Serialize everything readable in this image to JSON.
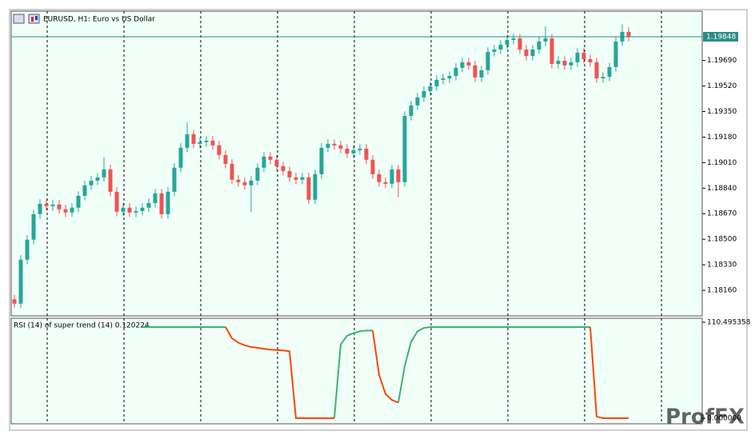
{
  "chart_data": [
    {
      "type": "candlestick",
      "title": "EURUSD, H1:  Euro vs US Dollar",
      "up_color": "#26a69a",
      "down_color": "#ef5350",
      "open": [
        1.181,
        1.18071,
        1.18364,
        1.18497,
        1.18667,
        1.18736,
        1.1872,
        1.18731,
        1.18699,
        1.18678,
        1.1871,
        1.18789,
        1.18859,
        1.1889,
        1.18912,
        1.18965,
        1.18816,
        1.18683,
        1.1871,
        1.18678,
        1.18688,
        1.1871,
        1.18741,
        1.18805,
        1.18667,
        1.18816,
        1.18976,
        1.19109,
        1.19199,
        1.19135,
        1.19146,
        1.19156,
        1.19125,
        1.19061,
        1.19002,
        1.18896,
        1.1888,
        1.18859,
        1.1889,
        1.18976,
        1.1905,
        1.19029,
        1.18986,
        1.18954,
        1.18912,
        1.18896,
        1.18912,
        1.18763,
        1.18933,
        1.19109,
        1.19135,
        1.19125,
        1.19103,
        1.19071,
        1.19093,
        1.19103,
        1.19029,
        1.18933,
        1.1888,
        1.18869,
        1.18965,
        1.1888,
        1.19321,
        1.19391,
        1.19444,
        1.19486,
        1.19518,
        1.19561,
        1.19571,
        1.19587,
        1.19641,
        1.19678,
        1.19657,
        1.19577,
        1.19625,
        1.19747,
        1.19763,
        1.19795,
        1.19827,
        1.19837,
        1.19763,
        1.1972,
        1.19763,
        1.19816,
        1.19837,
        1.19667,
        1.19688,
        1.19657,
        1.19678,
        1.19742,
        1.19699,
        1.19678,
        1.19571,
        1.19582,
        1.19646,
        1.19816,
        1.1988
      ],
      "high": [
        1.1813,
        1.18394,
        1.18527,
        1.18697,
        1.18766,
        1.18766,
        1.18761,
        1.18761,
        1.18729,
        1.1874,
        1.18819,
        1.18889,
        1.1892,
        1.18942,
        1.19045,
        1.18995,
        1.18846,
        1.1874,
        1.1874,
        1.18718,
        1.1874,
        1.18771,
        1.18835,
        1.18835,
        1.18846,
        1.19006,
        1.19139,
        1.19279,
        1.19229,
        1.19176,
        1.19186,
        1.19186,
        1.19155,
        1.19091,
        1.19032,
        1.18926,
        1.1891,
        1.1892,
        1.19006,
        1.1908,
        1.1908,
        1.19059,
        1.19016,
        1.18984,
        1.18942,
        1.18942,
        1.18942,
        1.18963,
        1.19139,
        1.19165,
        1.19165,
        1.19155,
        1.19133,
        1.19123,
        1.19133,
        1.19133,
        1.19059,
        1.18963,
        1.1891,
        1.18995,
        1.18995,
        1.19351,
        1.19421,
        1.19474,
        1.19516,
        1.19548,
        1.19591,
        1.19601,
        1.19617,
        1.19671,
        1.19708,
        1.19708,
        1.19687,
        1.19655,
        1.19777,
        1.19793,
        1.19825,
        1.19857,
        1.19867,
        1.19867,
        1.19793,
        1.19793,
        1.19846,
        1.19917,
        1.19867,
        1.19718,
        1.19718,
        1.19708,
        1.19772,
        1.19772,
        1.19729,
        1.19708,
        1.19612,
        1.19676,
        1.19846,
        1.1993,
        1.1991
      ],
      "low": [
        1.18041,
        1.18041,
        1.18334,
        1.18467,
        1.18637,
        1.1869,
        1.1869,
        1.18669,
        1.18648,
        1.18648,
        1.1868,
        1.18759,
        1.18829,
        1.1886,
        1.18882,
        1.18786,
        1.18653,
        1.18653,
        1.18648,
        1.18648,
        1.18658,
        1.1868,
        1.18711,
        1.18637,
        1.18637,
        1.18786,
        1.18946,
        1.19079,
        1.19105,
        1.19105,
        1.19116,
        1.19095,
        1.19031,
        1.18972,
        1.18866,
        1.1885,
        1.18829,
        1.1868,
        1.1886,
        1.18946,
        1.18999,
        1.18956,
        1.18924,
        1.18882,
        1.18866,
        1.18866,
        1.18733,
        1.18733,
        1.18903,
        1.19079,
        1.19095,
        1.19073,
        1.19041,
        1.19041,
        1.19063,
        1.18999,
        1.18903,
        1.1885,
        1.18839,
        1.18839,
        1.1878,
        1.1885,
        1.19291,
        1.19361,
        1.19414,
        1.19456,
        1.19488,
        1.19531,
        1.19541,
        1.19557,
        1.19611,
        1.19627,
        1.19547,
        1.19547,
        1.19595,
        1.19717,
        1.19733,
        1.19765,
        1.19797,
        1.19733,
        1.1969,
        1.1969,
        1.19733,
        1.19786,
        1.19637,
        1.19637,
        1.19627,
        1.19627,
        1.19648,
        1.19669,
        1.19648,
        1.19541,
        1.19541,
        1.19552,
        1.19616,
        1.19786,
        1.19818
      ],
      "close": [
        1.18071,
        1.18364,
        1.18497,
        1.18667,
        1.18736,
        1.1872,
        1.18731,
        1.18699,
        1.18678,
        1.1871,
        1.18789,
        1.18859,
        1.1889,
        1.18912,
        1.18965,
        1.18816,
        1.18683,
        1.1871,
        1.18678,
        1.18688,
        1.1871,
        1.18741,
        1.18805,
        1.18667,
        1.18816,
        1.18976,
        1.19109,
        1.19199,
        1.19135,
        1.19146,
        1.19156,
        1.19125,
        1.19061,
        1.19002,
        1.18896,
        1.1888,
        1.18859,
        1.1889,
        1.18976,
        1.1905,
        1.19029,
        1.18986,
        1.18954,
        1.18912,
        1.18896,
        1.18912,
        1.18763,
        1.18933,
        1.19109,
        1.19135,
        1.19125,
        1.19103,
        1.19071,
        1.19093,
        1.19103,
        1.19029,
        1.18933,
        1.1888,
        1.18869,
        1.18965,
        1.1888,
        1.19321,
        1.19391,
        1.19444,
        1.19486,
        1.19518,
        1.19561,
        1.19571,
        1.19587,
        1.19641,
        1.19678,
        1.19657,
        1.19577,
        1.19625,
        1.19747,
        1.19763,
        1.19795,
        1.19827,
        1.19837,
        1.19763,
        1.1972,
        1.19763,
        1.19816,
        1.19837,
        1.19667,
        1.19688,
        1.19657,
        1.19678,
        1.19742,
        1.19699,
        1.19678,
        1.19571,
        1.19582,
        1.19646,
        1.19816,
        1.1988,
        1.19848
      ],
      "ylim": [
        1.1799,
        1.20018
      ],
      "yticks": [
        {
          "value": 1.1969,
          "label": "1.19690"
        },
        {
          "value": 1.1952,
          "label": "1.19520"
        },
        {
          "value": 1.1935,
          "label": "1.19350"
        },
        {
          "value": 1.1918,
          "label": "1.19180"
        },
        {
          "value": 1.1901,
          "label": "1.19010"
        },
        {
          "value": 1.1884,
          "label": "1.18840"
        },
        {
          "value": 1.1867,
          "label": "1.18670"
        },
        {
          "value": 1.185,
          "label": "1.18500"
        },
        {
          "value": 1.1833,
          "label": "1.18330"
        },
        {
          "value": 1.1816,
          "label": "1.18160"
        }
      ],
      "last_price": 1.19848,
      "last_price_color": "#2a8c86"
    },
    {
      "type": "line",
      "title": "RSI (14) of super trend (14) 0.120224",
      "series": [
        {
          "color": "#3cb371",
          "values": [
            null,
            null,
            null,
            null,
            null,
            null,
            null,
            null,
            null,
            null,
            null,
            null,
            null,
            null,
            null,
            null,
            null,
            null,
            null,
            null,
            105,
            105,
            105,
            105,
            105,
            105,
            105,
            105,
            105,
            105,
            105,
            105,
            105,
            105,
            null,
            null,
            null,
            null,
            null,
            null,
            null,
            null,
            null,
            null,
            null,
            null,
            null,
            null,
            null,
            null,
            0,
            85,
            95,
            98,
            100,
            101,
            101,
            null,
            null,
            null,
            18,
            60,
            88,
            100,
            104,
            105,
            105,
            105,
            105,
            105,
            105,
            105,
            105,
            105,
            105,
            105,
            105,
            105,
            105,
            105,
            105,
            105,
            105,
            105,
            105,
            105,
            105,
            105,
            105,
            105,
            105,
            null,
            null,
            null,
            null,
            null,
            null
          ]
        },
        {
          "color": "#ff4500",
          "values": [
            null,
            null,
            null,
            null,
            null,
            null,
            null,
            null,
            null,
            null,
            null,
            null,
            null,
            null,
            null,
            null,
            null,
            null,
            null,
            null,
            null,
            null,
            null,
            null,
            null,
            null,
            null,
            null,
            null,
            null,
            null,
            null,
            null,
            105,
            92,
            87,
            84,
            82,
            81,
            80,
            79,
            78.5,
            78,
            77,
            0,
            0,
            0,
            0,
            0,
            0,
            0,
            null,
            null,
            null,
            null,
            null,
            101,
            50,
            28,
            21,
            18,
            null,
            null,
            null,
            null,
            null,
            null,
            null,
            null,
            null,
            null,
            null,
            null,
            null,
            null,
            null,
            null,
            null,
            null,
            null,
            null,
            null,
            null,
            null,
            null,
            null,
            null,
            null,
            null,
            null,
            105,
            2,
            0,
            0,
            0,
            0,
            0
          ]
        }
      ],
      "ylim": [
        -6.4,
        115.1
      ],
      "yticks": [
        110.495358,
        {
          "value": 0,
          "label": "0.000000"
        }
      ]
    }
  ],
  "watermark": "ProfFX"
}
